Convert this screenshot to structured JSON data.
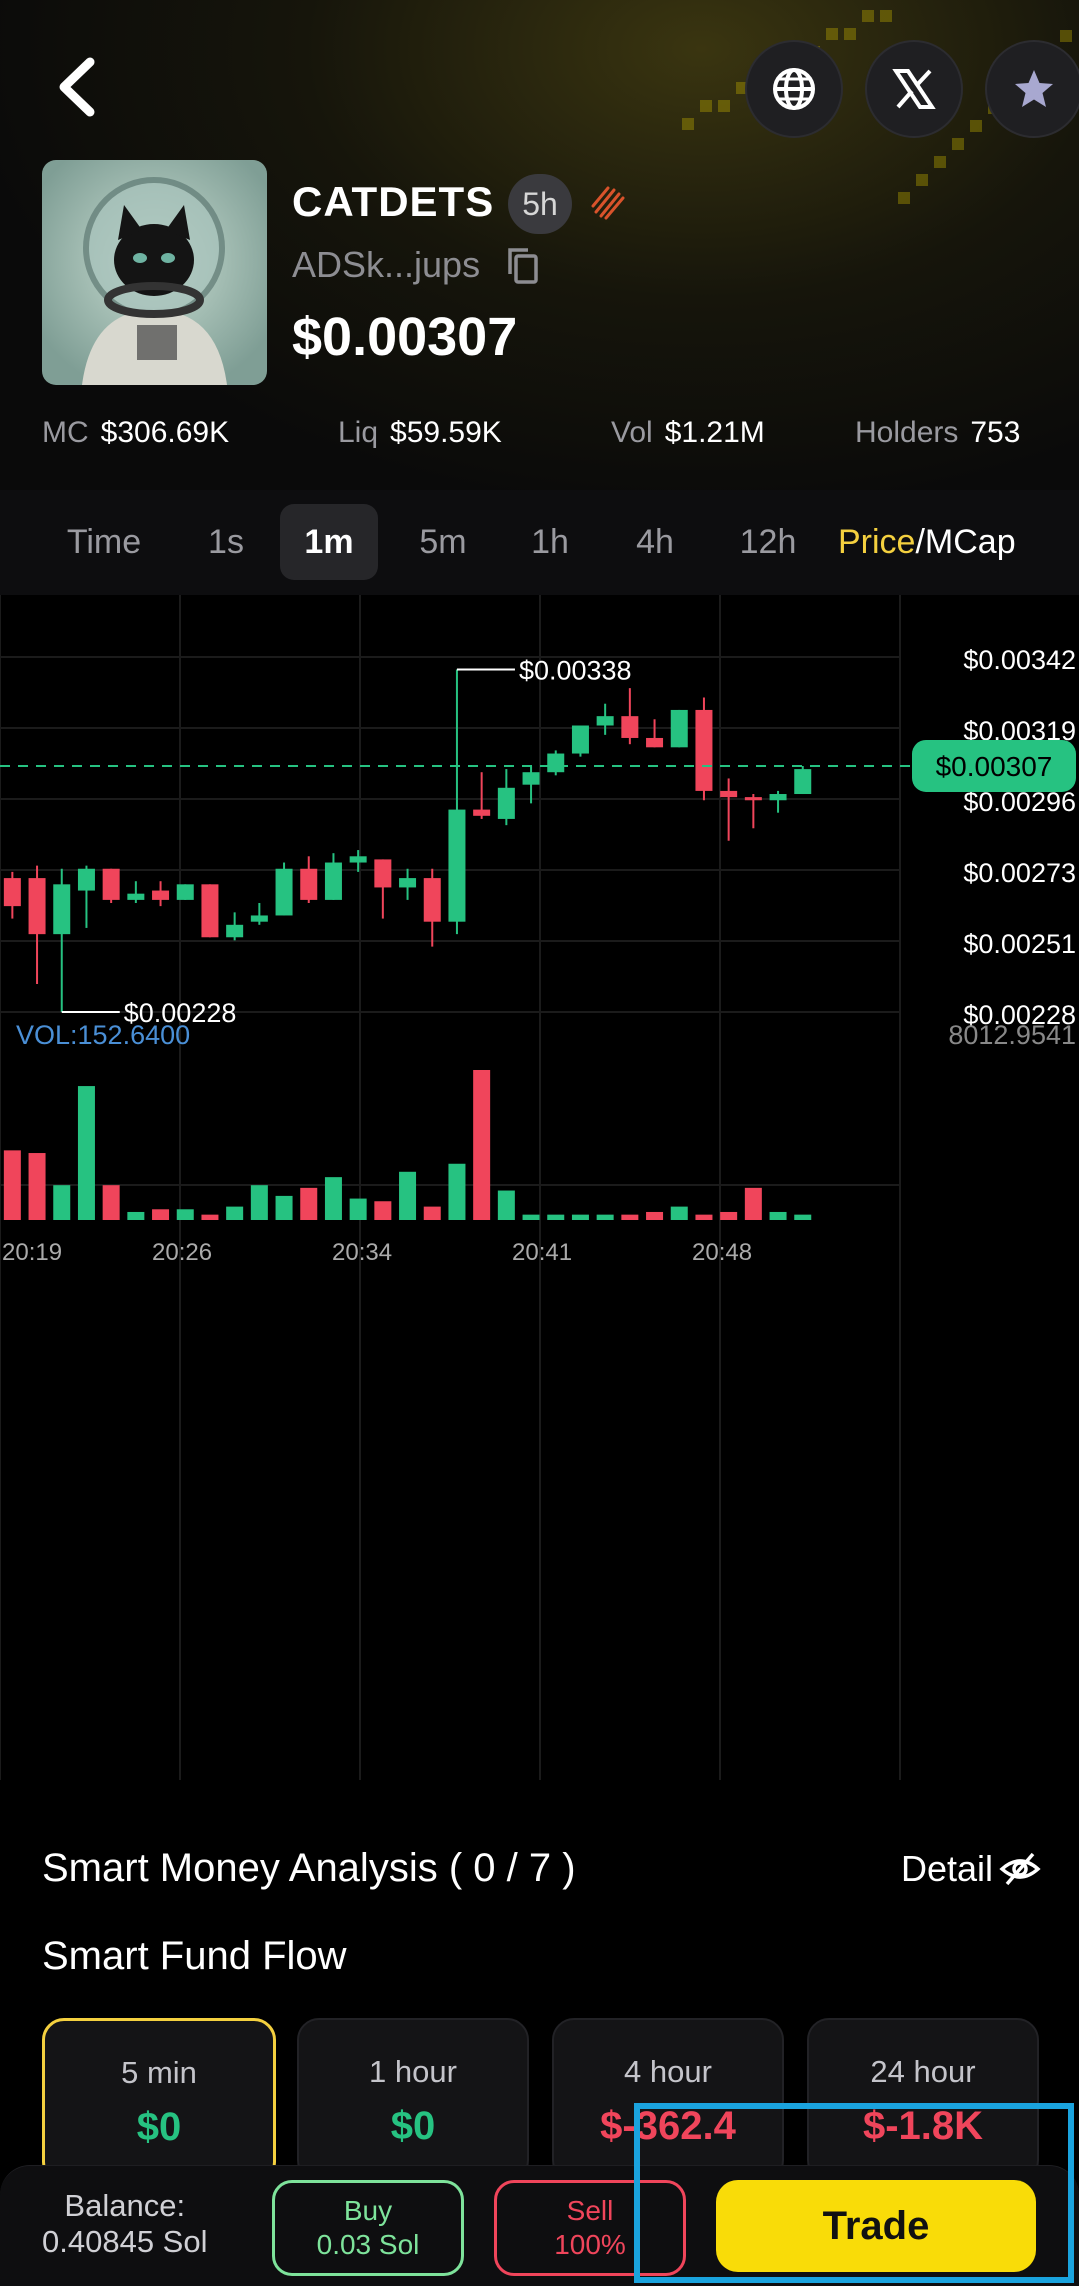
{
  "token": {
    "name": "CATDETS",
    "age": "5h",
    "address": "ADSk...jups",
    "price": "$0.00307"
  },
  "stats": [
    {
      "key": "MC",
      "value": "$306.69K"
    },
    {
      "key": "Liq",
      "value": "$59.59K"
    },
    {
      "key": "Vol",
      "value": "$1.21M"
    },
    {
      "key": "Holders",
      "value": "753"
    }
  ],
  "timeframes": [
    {
      "label": "Time",
      "active": false
    },
    {
      "label": "1s",
      "active": false
    },
    {
      "label": "1m",
      "active": true
    },
    {
      "label": "5m",
      "active": false
    },
    {
      "label": "1h",
      "active": false
    },
    {
      "label": "4h",
      "active": false
    },
    {
      "label": "12h",
      "active": false
    }
  ],
  "price_mcap": {
    "price": "Price",
    "sep": "/",
    "mcap": "MCap"
  },
  "chart_data": {
    "type": "candlestick",
    "y_axis_labels": [
      "$0.00342",
      "$0.00319",
      "$0.00296",
      "$0.00273",
      "$0.00251",
      "$0.00228"
    ],
    "ylim": [
      0.00228,
      0.00342
    ],
    "current_price_label": "$0.00307",
    "current_price": 0.00307,
    "high_marker": {
      "label": "$0.00338",
      "value": 0.00338
    },
    "low_marker": {
      "label": "$0.00228",
      "value": 0.00228
    },
    "volume_label": "VOL:152.6400",
    "volume_max_label": "8012.9541",
    "x_tick_labels": [
      "20:19",
      "20:26",
      "20:34",
      "20:41",
      "20:48"
    ],
    "candles": [
      {
        "o": 0.00271,
        "c": 0.00262,
        "h": 0.00273,
        "l": 0.00258
      },
      {
        "o": 0.00271,
        "c": 0.00253,
        "h": 0.00275,
        "l": 0.00237
      },
      {
        "o": 0.00253,
        "c": 0.00269,
        "h": 0.00274,
        "l": 0.00228
      },
      {
        "o": 0.00267,
        "c": 0.00274,
        "h": 0.00275,
        "l": 0.00255
      },
      {
        "o": 0.00274,
        "c": 0.00264,
        "h": 0.00274,
        "l": 0.00263
      },
      {
        "o": 0.00264,
        "c": 0.00266,
        "h": 0.0027,
        "l": 0.00263
      },
      {
        "o": 0.00267,
        "c": 0.00264,
        "h": 0.0027,
        "l": 0.00262
      },
      {
        "o": 0.00264,
        "c": 0.00269,
        "h": 0.00269,
        "l": 0.00264
      },
      {
        "o": 0.00269,
        "c": 0.00252,
        "h": 0.00269,
        "l": 0.00252
      },
      {
        "o": 0.00252,
        "c": 0.00256,
        "h": 0.0026,
        "l": 0.00251
      },
      {
        "o": 0.00257,
        "c": 0.00259,
        "h": 0.00263,
        "l": 0.00256
      },
      {
        "o": 0.00259,
        "c": 0.00274,
        "h": 0.00276,
        "l": 0.00259
      },
      {
        "o": 0.00274,
        "c": 0.00264,
        "h": 0.00278,
        "l": 0.00263
      },
      {
        "o": 0.00264,
        "c": 0.00276,
        "h": 0.00279,
        "l": 0.00264
      },
      {
        "o": 0.00276,
        "c": 0.00278,
        "h": 0.0028,
        "l": 0.00273
      },
      {
        "o": 0.00277,
        "c": 0.00268,
        "h": 0.00277,
        "l": 0.00258
      },
      {
        "o": 0.00268,
        "c": 0.00271,
        "h": 0.00274,
        "l": 0.00264
      },
      {
        "o": 0.00271,
        "c": 0.00257,
        "h": 0.00274,
        "l": 0.00249
      },
      {
        "o": 0.00257,
        "c": 0.00293,
        "h": 0.00338,
        "l": 0.00253
      },
      {
        "o": 0.00293,
        "c": 0.00291,
        "h": 0.00305,
        "l": 0.0029
      },
      {
        "o": 0.0029,
        "c": 0.003,
        "h": 0.00306,
        "l": 0.00288
      },
      {
        "o": 0.00301,
        "c": 0.00305,
        "h": 0.00307,
        "l": 0.00295
      },
      {
        "o": 0.00305,
        "c": 0.00311,
        "h": 0.00312,
        "l": 0.00304
      },
      {
        "o": 0.00311,
        "c": 0.0032,
        "h": 0.0032,
        "l": 0.0031
      },
      {
        "o": 0.0032,
        "c": 0.00323,
        "h": 0.00327,
        "l": 0.00317
      },
      {
        "o": 0.00323,
        "c": 0.00316,
        "h": 0.00332,
        "l": 0.00314
      },
      {
        "o": 0.00316,
        "c": 0.00313,
        "h": 0.00322,
        "l": 0.00313
      },
      {
        "o": 0.00313,
        "c": 0.00325,
        "h": 0.00325,
        "l": 0.00313
      },
      {
        "o": 0.00325,
        "c": 0.00299,
        "h": 0.00329,
        "l": 0.00296
      },
      {
        "o": 0.00299,
        "c": 0.00297,
        "h": 0.00303,
        "l": 0.00283
      },
      {
        "o": 0.00297,
        "c": 0.00296,
        "h": 0.00298,
        "l": 0.00287
      },
      {
        "o": 0.00296,
        "c": 0.00298,
        "h": 0.00299,
        "l": 0.00292
      },
      {
        "o": 0.00298,
        "c": 0.00306,
        "h": 0.00307,
        "l": 0.00298
      }
    ],
    "volumes": [
      2600,
      2500,
      1300,
      5000,
      1300,
      300,
      400,
      400,
      200,
      500,
      1300,
      900,
      1200,
      1600,
      800,
      700,
      1800,
      500,
      2100,
      5600,
      1100,
      200,
      200,
      200,
      200,
      200,
      300,
      500,
      200,
      300,
      1200,
      300,
      200
    ],
    "grid": true,
    "colors": {
      "up": "#26c281",
      "down": "#f0455b",
      "current_line": "#26c281"
    }
  },
  "smart_money": {
    "title": "Smart Money Analysis ( 0 / 7 )",
    "detail": "Detail",
    "fund_flow_title": "Smart Fund Flow",
    "cards": [
      {
        "label": "5 min",
        "value": "$0",
        "sign": "pos",
        "active": true
      },
      {
        "label": "1 hour",
        "value": "$0",
        "sign": "pos",
        "active": false
      },
      {
        "label": "4 hour",
        "value": "$-362.4",
        "sign": "neg",
        "active": false
      },
      {
        "label": "24 hour",
        "value": "$-1.8K",
        "sign": "neg",
        "active": false
      }
    ]
  },
  "bottom": {
    "balance_label": "Balance:",
    "balance_value": "0.40845 Sol",
    "buy_label": "Buy",
    "buy_amount": "0.03 Sol",
    "sell_label": "Sell",
    "sell_amount": "100%",
    "trade_label": "Trade"
  },
  "icons": [
    "back-icon",
    "globe-icon",
    "x-logo-icon",
    "star-icon",
    "flame-icon",
    "copy-icon",
    "eye-off-icon"
  ],
  "accent": "#f9dc08"
}
